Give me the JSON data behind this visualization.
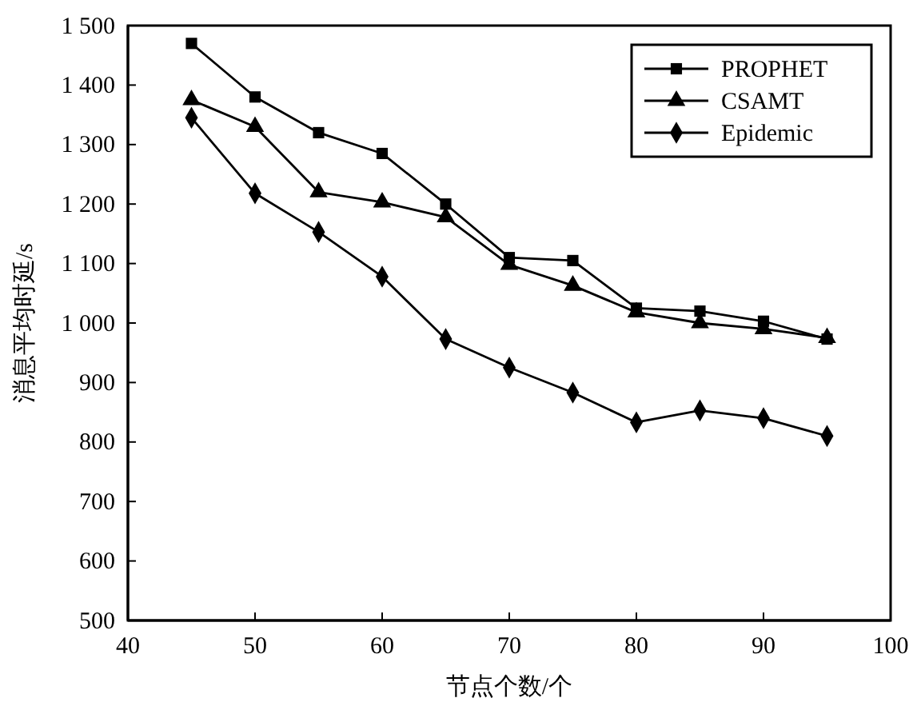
{
  "chart_data": {
    "type": "line",
    "xlabel": "节点个数/个",
    "ylabel": "消息平均时延/s",
    "x": [
      45,
      50,
      55,
      60,
      65,
      70,
      75,
      80,
      85,
      90,
      95
    ],
    "series": [
      {
        "name": "PROPHET",
        "color": "#000000",
        "marker": "square",
        "values": [
          1470,
          1380,
          1320,
          1285,
          1200,
          1110,
          1105,
          1025,
          1020,
          1003,
          973
        ]
      },
      {
        "name": "CSAMT",
        "color": "#000000",
        "marker": "triangle",
        "values": [
          1375,
          1330,
          1220,
          1203,
          1178,
          1098,
          1063,
          1018,
          1000,
          990,
          975
        ]
      },
      {
        "name": "Epidemic",
        "color": "#000000",
        "marker": "diamond",
        "values": [
          1345,
          1218,
          1153,
          1078,
          973,
          925,
          883,
          833,
          853,
          840,
          810
        ]
      }
    ],
    "xlim": [
      40,
      100
    ],
    "xticks": [
      40,
      50,
      60,
      70,
      80,
      90,
      100
    ],
    "ylim": [
      500,
      1500
    ],
    "yticks": [
      500,
      600,
      700,
      800,
      900,
      {
        "value": 1000,
        "label": "1 000"
      },
      {
        "value": 1100,
        "label": "1 100"
      },
      {
        "value": 1200,
        "label": "1 200"
      },
      {
        "value": 1300,
        "label": "1 300"
      },
      {
        "value": 1400,
        "label": "1 400"
      },
      {
        "value": 1500,
        "label": "1 500"
      }
    ],
    "grid": false,
    "legend": "top right",
    "line_style": "solid"
  }
}
